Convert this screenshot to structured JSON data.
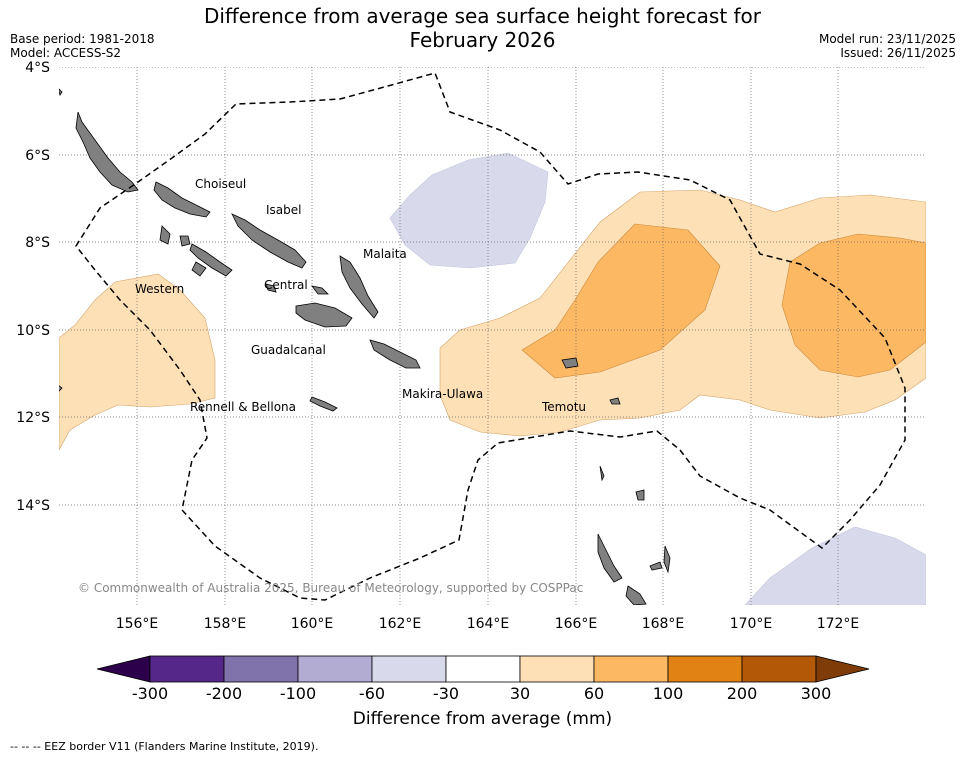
{
  "title_line1": "Difference from average sea surface height forecast for",
  "title_line2": "February 2026",
  "base_period": "Base period: 1981-2018",
  "model": "Model: ACCESS-S2",
  "model_run": "Model run: 23/11/2025",
  "issued": "Issued: 26/11/2025",
  "lat_labels": [
    "4°S",
    "6°S",
    "8°S",
    "10°S",
    "12°S",
    "14°S"
  ],
  "lon_labels": [
    "156°E",
    "158°E",
    "160°E",
    "162°E",
    "164°E",
    "166°E",
    "168°E",
    "170°E",
    "172°E"
  ],
  "provinces": [
    "Choiseul",
    "Isabel",
    "Malaita",
    "Western",
    "Central",
    "Guadalcanal",
    "Makira-Ulawa",
    "Rennell & Bellona",
    "Temotu"
  ],
  "copyright": "© Commonwealth of Australia 2025, Bureau of Meteorology, supported by COSPPac",
  "colorbar": {
    "ticks": [
      "-300",
      "-200",
      "-100",
      "-60",
      "-30",
      "30",
      "60",
      "100",
      "200",
      "300"
    ],
    "colors": [
      "#542788",
      "#8073ac",
      "#b2abd2",
      "#d8daeb",
      "#ffffff",
      "#fee0b6",
      "#fdb863",
      "#e08214",
      "#b35806"
    ],
    "low_extend": "#2d004b",
    "high_extend": "#7f3b08",
    "label": "Difference from average (mm)"
  },
  "footer": "--  --  -- EEZ border V11 (Flanders Marine Institute, 2019)."
}
